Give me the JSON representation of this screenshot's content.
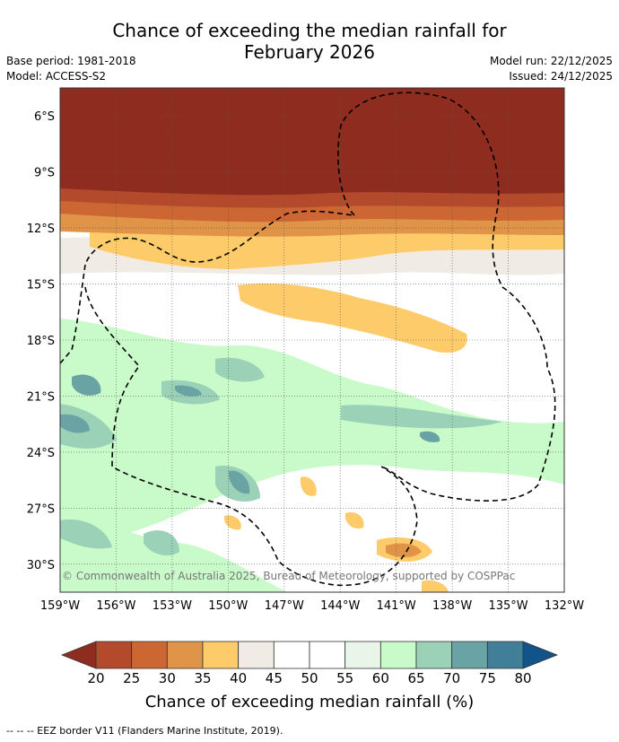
{
  "title_line1": "Chance of exceeding the median rainfall for",
  "title_line2": "February 2026",
  "base_period": "Base period: 1981-2018",
  "model": "Model: ACCESS-S2",
  "model_run": "Model run: 22/12/2025",
  "issued": "Issued: 24/12/2025",
  "copyright": "© Commonwealth of Australia 2025, Bureau of Meteorology, supported by COSPPac",
  "footer": "--  --  -- EEZ border V11 (Flanders Marine Institute, 2019).",
  "map": {
    "lon_range": [
      -159,
      -132
    ],
    "lat_range": [
      -31.5,
      -4.5
    ],
    "lat_ticks": [
      {
        "value": -6,
        "label": "6°S"
      },
      {
        "value": -9,
        "label": "9°S"
      },
      {
        "value": -12,
        "label": "12°S"
      },
      {
        "value": -15,
        "label": "15°S"
      },
      {
        "value": -18,
        "label": "18°S"
      },
      {
        "value": -21,
        "label": "21°S"
      },
      {
        "value": -24,
        "label": "24°S"
      },
      {
        "value": -27,
        "label": "27°S"
      },
      {
        "value": -30,
        "label": "30°S"
      }
    ],
    "lon_ticks": [
      {
        "value": -159,
        "label": "159°W"
      },
      {
        "value": -156,
        "label": "156°W"
      },
      {
        "value": -153,
        "label": "153°W"
      },
      {
        "value": -150,
        "label": "150°W"
      },
      {
        "value": -147,
        "label": "147°W"
      },
      {
        "value": -144,
        "label": "144°W"
      },
      {
        "value": -141,
        "label": "141°W"
      },
      {
        "value": -138,
        "label": "138°W"
      },
      {
        "value": -135,
        "label": "135°W"
      },
      {
        "value": -132,
        "label": "132°W"
      }
    ]
  },
  "colorbar": {
    "label": "Chance of exceeding median rainfall (%)",
    "ticks": [
      "20",
      "25",
      "30",
      "35",
      "40",
      "45",
      "50",
      "55",
      "60",
      "65",
      "70",
      "75",
      "80"
    ],
    "colors": {
      "below20": "#8e2d1f",
      "c20_25": "#b34a2b",
      "c25_30": "#cc6633",
      "c30_35": "#e09448",
      "c35_40": "#fecb6a",
      "c40_45": "#f1ebe6",
      "c45_50": "#ffffff",
      "c50_55": "#ffffff",
      "c55_60": "#e9f5e9",
      "c60_65": "#c9fac9",
      "c65_70": "#9bd1b7",
      "c70_75": "#6aa3a3",
      "c75_80": "#417e98",
      "above80": "#12538a"
    }
  }
}
